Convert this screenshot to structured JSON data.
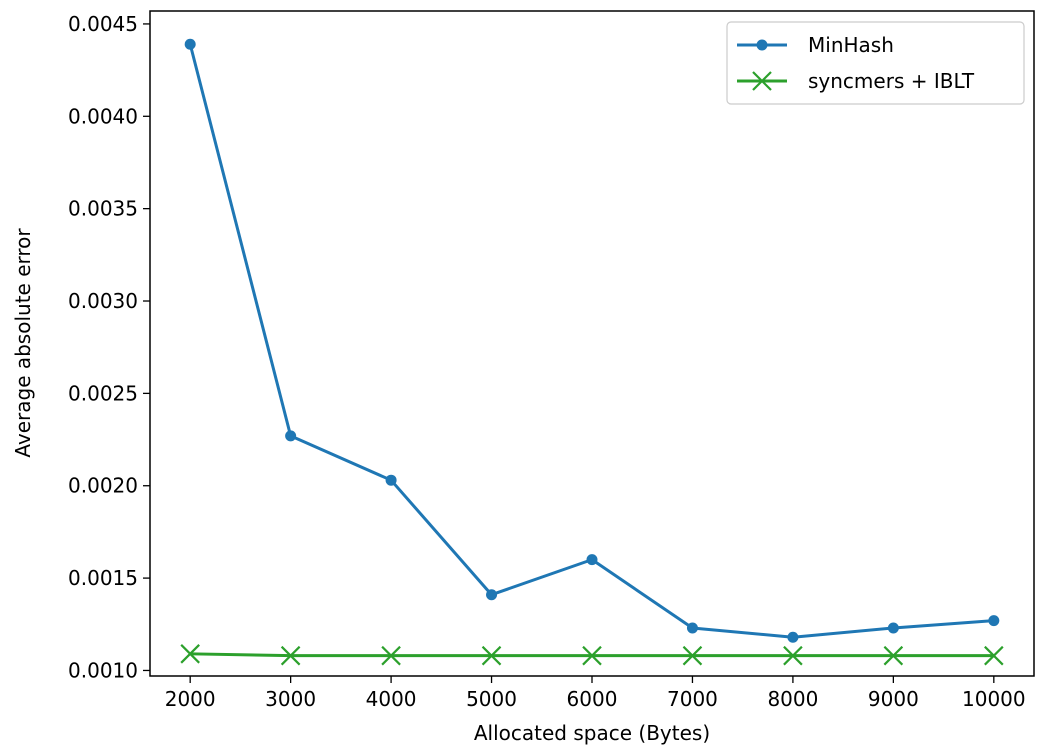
{
  "chart_data": {
    "type": "line",
    "title": "",
    "xlabel": "Allocated space (Bytes)",
    "ylabel": "Average absolute error",
    "x": [
      2000,
      3000,
      4000,
      5000,
      6000,
      7000,
      8000,
      9000,
      10000
    ],
    "xticks": [
      "2000",
      "3000",
      "4000",
      "5000",
      "6000",
      "7000",
      "8000",
      "9000",
      "10000"
    ],
    "yticks": [
      "0.0010",
      "0.0015",
      "0.0020",
      "0.0025",
      "0.0030",
      "0.0035",
      "0.0040",
      "0.0045"
    ],
    "ylim": [
      0.00097,
      0.00457
    ],
    "xlim": [
      1600,
      10400
    ],
    "grid": false,
    "legend_position": "top-right",
    "series": [
      {
        "name": "MinHash",
        "marker": "circle",
        "color": "#1f77b4",
        "values": [
          0.00439,
          0.00227,
          0.00203,
          0.00141,
          0.0016,
          0.00123,
          0.00118,
          0.00123,
          0.00127
        ]
      },
      {
        "name": "syncmers + IBLT",
        "marker": "x",
        "color": "#2ca02c",
        "values": [
          0.00109,
          0.00108,
          0.00108,
          0.00108,
          0.00108,
          0.00108,
          0.00108,
          0.00108,
          0.00108
        ]
      }
    ]
  }
}
